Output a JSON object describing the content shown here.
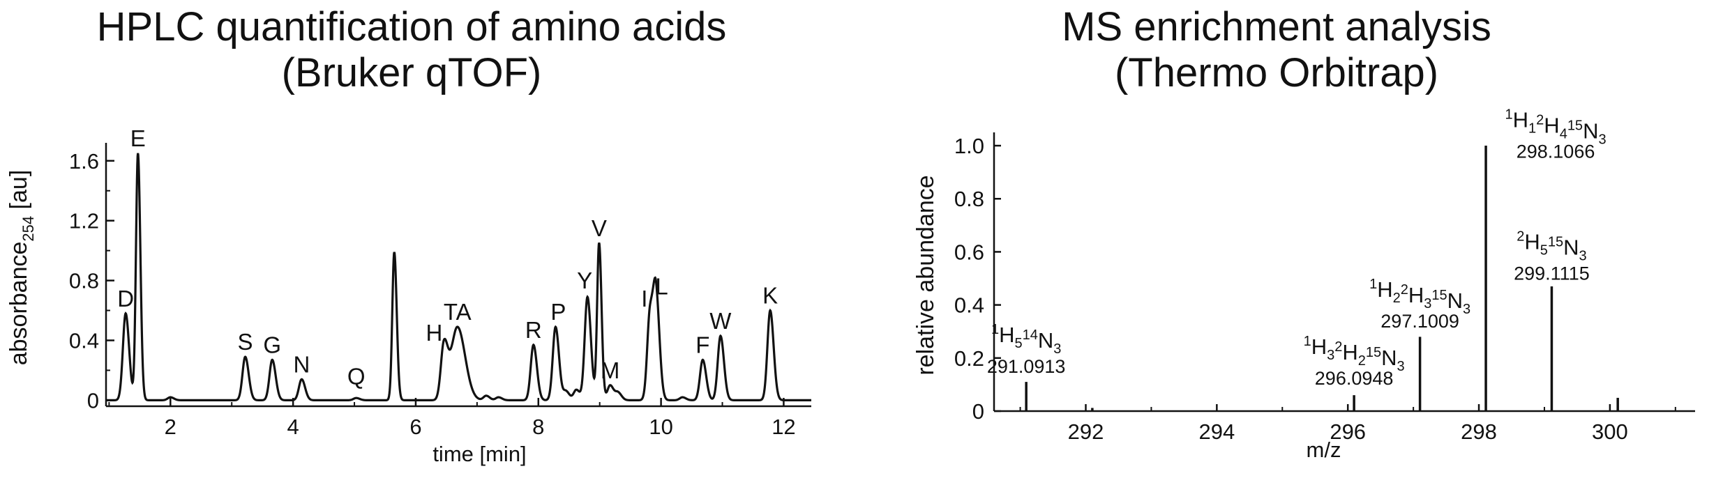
{
  "chart_data": [
    {
      "type": "line",
      "title_line1": "HPLC quantification of amino acids",
      "title_line2": "(Bruker qTOF)",
      "xlabel": "time [min]",
      "ylabel_main": "absorbance",
      "ylabel_sub": "254",
      "ylabel_tail": " [au]",
      "xlim": [
        0.95,
        12.45
      ],
      "ylim": [
        -0.04,
        1.72
      ],
      "xticks": [
        2,
        4,
        6,
        8,
        10,
        12
      ],
      "yticks": [
        0,
        0.4,
        0.8,
        1.2,
        1.6
      ],
      "ytick_labels": [
        "0",
        "0.4",
        "0.8",
        "1.2",
        "1.6"
      ],
      "peaks": [
        {
          "label": "D",
          "x": 1.27,
          "y": 0.58
        },
        {
          "label": "E",
          "x": 1.47,
          "y": 1.65
        },
        {
          "label": "",
          "x": 2.0,
          "y": 0.02
        },
        {
          "label": "S",
          "x": 3.22,
          "y": 0.29
        },
        {
          "label": "G",
          "x": 3.66,
          "y": 0.27
        },
        {
          "label": "N",
          "x": 4.14,
          "y": 0.14
        },
        {
          "label": "Q",
          "x": 5.03,
          "y": 0.015
        },
        {
          "label": "",
          "x": 5.65,
          "y": 0.99
        },
        {
          "label": "H",
          "x": 6.46,
          "y": 0.36
        },
        {
          "label": "TA",
          "x": 6.68,
          "y": 0.49
        },
        {
          "label": "",
          "x": 7.15,
          "y": 0.03
        },
        {
          "label": "",
          "x": 7.35,
          "y": 0.02
        },
        {
          "label": "R",
          "x": 7.92,
          "y": 0.37
        },
        {
          "label": "P",
          "x": 8.28,
          "y": 0.49
        },
        {
          "label": "",
          "x": 8.45,
          "y": 0.06
        },
        {
          "label": "",
          "x": 8.62,
          "y": 0.07
        },
        {
          "label": "Y",
          "x": 8.8,
          "y": 0.69
        },
        {
          "label": "V",
          "x": 8.99,
          "y": 1.05
        },
        {
          "label": "M",
          "x": 9.17,
          "y": 0.1
        },
        {
          "label": "",
          "x": 9.3,
          "y": 0.05
        },
        {
          "label": "I",
          "x": 9.82,
          "y": 0.58
        },
        {
          "label": "L",
          "x": 9.92,
          "y": 0.67
        },
        {
          "label": "",
          "x": 10.35,
          "y": 0.02
        },
        {
          "label": "F",
          "x": 10.68,
          "y": 0.27
        },
        {
          "label": "W",
          "x": 10.97,
          "y": 0.43
        },
        {
          "label": "K",
          "x": 11.78,
          "y": 0.6
        }
      ]
    },
    {
      "type": "bar",
      "title_line1": "MS enrichment analysis",
      "title_line2": "(Thermo Orbitrap)",
      "xlabel": "m/z",
      "ylabel": "relative abundance",
      "xlim": [
        290.6,
        301.3
      ],
      "ylim": [
        0,
        1.05
      ],
      "xticks": [
        292,
        294,
        296,
        298,
        300
      ],
      "yticks": [
        0,
        0.2,
        0.4,
        0.6,
        0.8,
        1.0
      ],
      "ytick_labels": [
        "0",
        "0.2",
        "0.4",
        "0.6",
        "0.8",
        "1.0"
      ],
      "sticks": [
        {
          "mz": 291.0913,
          "value": 0.11
        },
        {
          "mz": 292.1,
          "value": 0.012
        },
        {
          "mz": 296.0948,
          "value": 0.06
        },
        {
          "mz": 297.1009,
          "value": 0.28
        },
        {
          "mz": 298.1066,
          "value": 1.0
        },
        {
          "mz": 299.1115,
          "value": 0.47
        },
        {
          "mz": 300.12,
          "value": 0.05
        }
      ],
      "annotations": [
        {
          "mz_text": "291.0913",
          "formula": [
            [
              "1",
              "H"
            ],
            [
              "5",
              ""
            ],
            [
              "14",
              "N"
            ],
            [
              "3",
              ""
            ]
          ]
        },
        {
          "mz_text": "296.0948",
          "formula": [
            [
              "1",
              "H"
            ],
            [
              "3",
              ""
            ],
            [
              "2",
              "H"
            ],
            [
              "2",
              ""
            ],
            [
              "15",
              "N"
            ],
            [
              "3",
              ""
            ]
          ]
        },
        {
          "mz_text": "297.1009",
          "formula": [
            [
              "1",
              "H"
            ],
            [
              "2",
              ""
            ],
            [
              "2",
              "H"
            ],
            [
              "3",
              ""
            ],
            [
              "15",
              "N"
            ],
            [
              "3",
              ""
            ]
          ]
        },
        {
          "mz_text": "298.1066",
          "formula": [
            [
              "1",
              "H"
            ],
            [
              "1",
              ""
            ],
            [
              "2",
              "H"
            ],
            [
              "4",
              ""
            ],
            [
              "15",
              "N"
            ],
            [
              "3",
              ""
            ]
          ]
        },
        {
          "mz_text": "299.1115",
          "formula": [
            [
              "2",
              "H"
            ],
            [
              "5",
              ""
            ],
            [
              "15",
              "N"
            ],
            [
              "3",
              ""
            ]
          ]
        }
      ]
    }
  ]
}
